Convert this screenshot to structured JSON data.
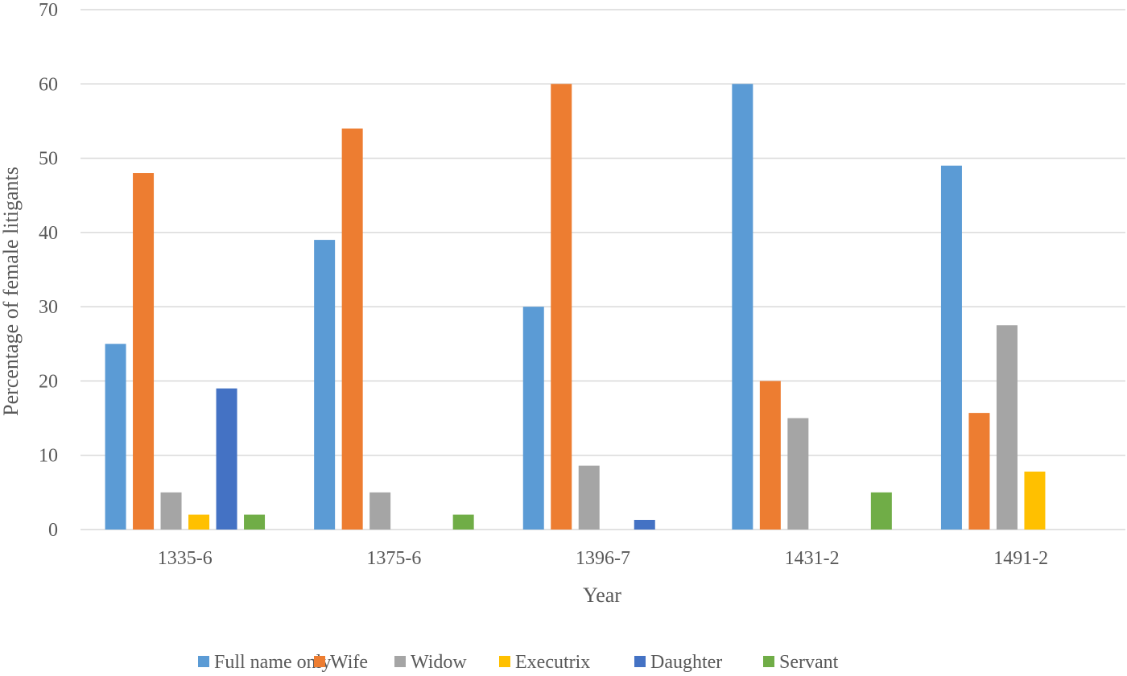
{
  "chart_data": {
    "type": "bar",
    "title": "",
    "xlabel": "Year",
    "ylabel": "Percentage of female litigants",
    "ylim": [
      0,
      70
    ],
    "yticks": [
      0,
      10,
      20,
      30,
      40,
      50,
      60,
      70
    ],
    "grid": true,
    "legend_position": "bottom",
    "categories": [
      "1335-6",
      "1375-6",
      "1396-7",
      "1431-2",
      "1491-2"
    ],
    "series": [
      {
        "name": "Full name only",
        "color": "#5B9BD5",
        "values": [
          25,
          39,
          30,
          60,
          49
        ]
      },
      {
        "name": "Wife",
        "color": "#ED7D31",
        "values": [
          48,
          54,
          60,
          20,
          15.7
        ]
      },
      {
        "name": "Widow",
        "color": "#A5A5A5",
        "values": [
          5,
          5,
          8.6,
          15,
          27.5
        ]
      },
      {
        "name": "Executrix",
        "color": "#FFC000",
        "values": [
          2,
          0,
          0,
          0,
          7.8
        ]
      },
      {
        "name": "Daughter",
        "color": "#4472C4",
        "values": [
          19,
          0,
          1.3,
          0,
          0
        ]
      },
      {
        "name": "Servant",
        "color": "#70AD47",
        "values": [
          2,
          2,
          0,
          5,
          0
        ]
      }
    ]
  }
}
